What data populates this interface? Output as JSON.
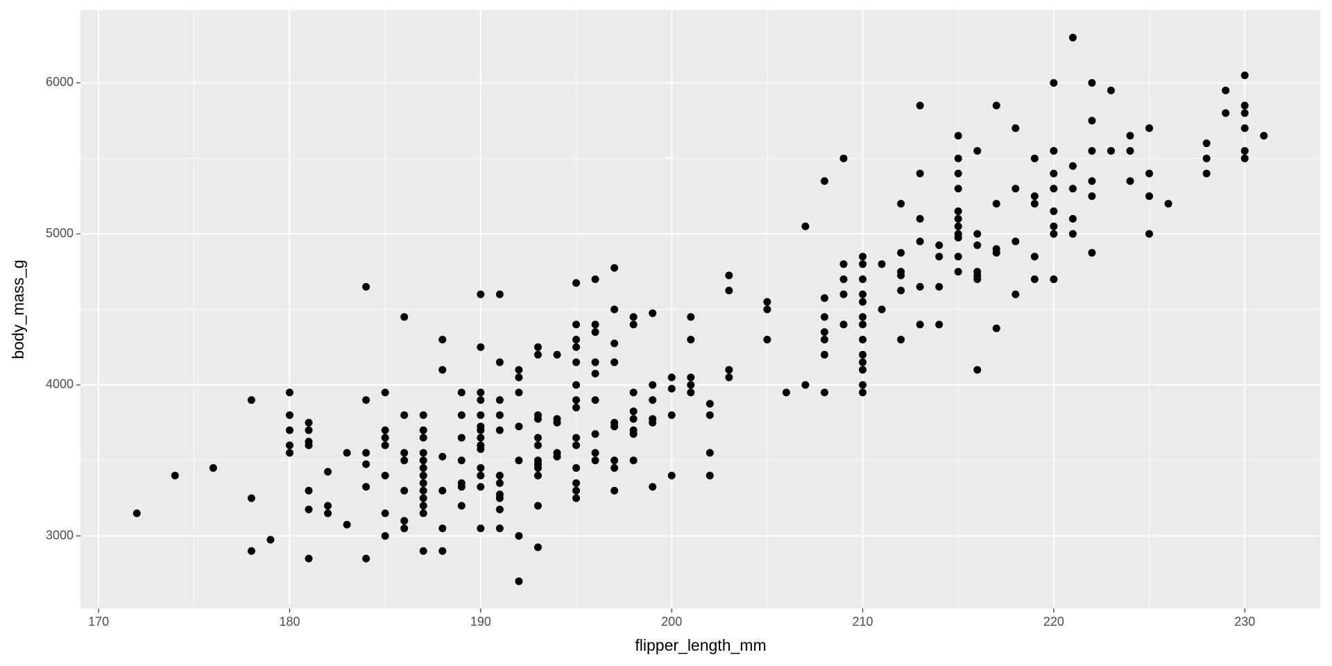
{
  "chart_data": {
    "type": "scatter",
    "xlabel": "flipper_length_mm",
    "ylabel": "body_mass_g",
    "color": "#000000",
    "panel_color": "#ebebeb",
    "grid": true,
    "xlim": [
      169.05,
      233.95
    ],
    "ylim": [
      2520,
      6480
    ],
    "xticks": [
      170,
      180,
      190,
      200,
      210,
      220,
      230
    ],
    "yticks": [
      3000,
      4000,
      5000,
      6000
    ],
    "xminor": [
      175,
      185,
      195,
      205,
      215,
      225
    ],
    "yminor": [
      2500,
      3500,
      4500,
      5500
    ],
    "x": [
      172,
      174,
      176,
      178,
      178,
      178,
      179,
      180,
      180,
      180,
      180,
      180,
      181,
      181,
      181,
      181,
      181,
      181,
      181,
      182,
      182,
      182,
      183,
      183,
      184,
      184,
      184,
      184,
      184,
      184,
      185,
      185,
      185,
      185,
      185,
      185,
      185,
      186,
      186,
      186,
      186,
      186,
      186,
      186,
      187,
      187,
      187,
      187,
      187,
      187,
      187,
      187,
      187,
      187,
      187,
      187,
      187,
      188,
      188,
      188,
      188,
      188,
      188,
      189,
      189,
      189,
      189,
      189,
      189,
      189,
      190,
      190,
      190,
      190,
      190,
      190,
      190,
      190,
      190,
      190,
      190,
      190,
      190,
      190,
      191,
      191,
      191,
      191,
      191,
      191,
      191,
      191,
      191,
      191,
      191,
      192,
      192,
      192,
      192,
      192,
      192,
      192,
      193,
      193,
      193,
      193,
      193,
      193,
      193,
      193,
      193,
      193,
      193,
      193,
      194,
      194,
      194,
      194,
      194,
      195,
      195,
      195,
      195,
      195,
      195,
      195,
      195,
      195,
      195,
      195,
      195,
      195,
      195,
      196,
      196,
      196,
      196,
      196,
      196,
      196,
      196,
      196,
      197,
      197,
      197,
      197,
      197,
      197,
      197,
      197,
      197,
      198,
      198,
      198,
      198,
      198,
      198,
      198,
      198,
      199,
      199,
      199,
      199,
      199,
      199,
      200,
      200,
      200,
      200,
      201,
      201,
      201,
      201,
      201,
      202,
      202,
      202,
      202,
      203,
      203,
      203,
      203,
      205,
      205,
      205,
      206,
      207,
      207,
      208,
      208,
      208,
      208,
      208,
      208,
      208,
      209,
      209,
      209,
      209,
      209,
      210,
      210,
      210,
      210,
      210,
      210,
      210,
      210,
      210,
      210,
      210,
      210,
      210,
      211,
      211,
      212,
      212,
      212,
      212,
      212,
      212,
      213,
      213,
      213,
      213,
      213,
      213,
      214,
      214,
      214,
      214,
      215,
      215,
      215,
      215,
      215,
      215,
      215,
      215,
      215,
      215,
      215,
      216,
      216,
      216,
      216,
      216,
      216,
      216,
      217,
      217,
      217,
      217,
      217,
      218,
      218,
      218,
      218,
      219,
      219,
      219,
      219,
      219,
      220,
      220,
      220,
      220,
      220,
      220,
      220,
      220,
      221,
      221,
      221,
      221,
      221,
      222,
      222,
      222,
      222,
      222,
      222,
      223,
      223,
      224,
      224,
      224,
      225,
      225,
      225,
      225,
      226,
      228,
      228,
      228,
      229,
      229,
      230,
      230,
      230,
      230,
      230,
      230,
      231
    ],
    "y": [
      3150,
      3400,
      3450,
      3900,
      3250,
      2900,
      2975,
      3950,
      3800,
      3700,
      3600,
      3550,
      3750,
      3700,
      3625,
      3600,
      3300,
      3175,
      2850,
      3425,
      3200,
      3150,
      3550,
      3075,
      4650,
      3900,
      3550,
      3475,
      3325,
      2850,
      3950,
      3700,
      3650,
      3600,
      3400,
      3150,
      3000,
      4450,
      3800,
      3550,
      3500,
      3300,
      3100,
      3050,
      3800,
      3700,
      3650,
      3550,
      3500,
      3450,
      3400,
      3350,
      3300,
      3250,
      3200,
      3150,
      2900,
      4300,
      4100,
      3525,
      3300,
      3050,
      2900,
      3950,
      3800,
      3650,
      3500,
      3350,
      3325,
      3200,
      4600,
      4250,
      3950,
      3900,
      3800,
      3725,
      3700,
      3650,
      3600,
      3575,
      3450,
      3400,
      3325,
      3050,
      4600,
      4150,
      3900,
      3800,
      3700,
      3400,
      3350,
      3275,
      3250,
      3175,
      3050,
      4100,
      4050,
      3950,
      3725,
      3500,
      3000,
      2700,
      4250,
      4200,
      3800,
      3775,
      3650,
      3600,
      3500,
      3475,
      3450,
      3400,
      3200,
      2925,
      4200,
      3775,
      3750,
      3550,
      3525,
      4675,
      4400,
      4300,
      4250,
      4150,
      4000,
      3900,
      3850,
      3650,
      3600,
      3450,
      3350,
      3300,
      3250,
      4700,
      4400,
      4350,
      4150,
      4075,
      3900,
      3675,
      3550,
      3500,
      4775,
      4500,
      4275,
      4150,
      3750,
      3725,
      3500,
      3450,
      3300,
      4450,
      4400,
      3950,
      3825,
      3775,
      3700,
      3675,
      3500,
      4475,
      4000,
      3900,
      3775,
      3750,
      3325,
      4050,
      3975,
      3800,
      3400,
      4450,
      4300,
      4050,
      4000,
      3950,
      3875,
      3800,
      3550,
      3400,
      4725,
      4625,
      4100,
      4050,
      4550,
      4500,
      4300,
      3950,
      5050,
      4000,
      5350,
      4575,
      4450,
      4350,
      4300,
      4200,
      3950,
      5500,
      4800,
      4700,
      4600,
      4400,
      4850,
      4800,
      4700,
      4600,
      4550,
      4450,
      4400,
      4300,
      4200,
      4150,
      4100,
      4000,
      3950,
      4800,
      4500,
      5200,
      4875,
      4750,
      4725,
      4625,
      4300,
      5850,
      5400,
      5100,
      4950,
      4650,
      4400,
      4925,
      4850,
      4650,
      4400,
      5650,
      5500,
      5400,
      5300,
      5150,
      5100,
      5050,
      5000,
      4975,
      4850,
      4750,
      5550,
      5000,
      4925,
      4750,
      4725,
      4700,
      4100,
      5850,
      5200,
      4900,
      4875,
      4375,
      5700,
      5300,
      4950,
      4600,
      5500,
      5250,
      5200,
      4850,
      4700,
      6000,
      5550,
      5400,
      5300,
      5150,
      5050,
      5000,
      4700,
      6300,
      5450,
      5300,
      5100,
      5000,
      6000,
      5750,
      5550,
      5350,
      5250,
      4875,
      5950,
      5550,
      5650,
      5550,
      5350,
      5700,
      5400,
      5250,
      5000,
      5200,
      5600,
      5500,
      5400,
      5950,
      5800,
      6050,
      5850,
      5800,
      5700,
      5550,
      5500,
      5650
    ]
  }
}
